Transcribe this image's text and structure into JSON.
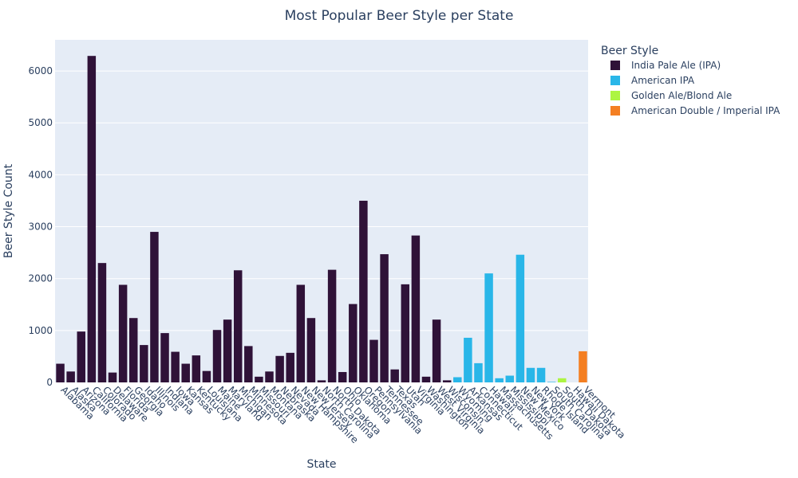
{
  "chart_data": {
    "type": "bar",
    "title": "Most Popular Beer Style per State",
    "xlabel": "State",
    "ylabel": "Beer Style Count",
    "ylim": [
      0,
      6600
    ],
    "yticks": [
      0,
      1000,
      2000,
      3000,
      4000,
      5000,
      6000
    ],
    "grid": true,
    "legend": {
      "title": "Beer Style",
      "position": "right",
      "entries": [
        {
          "name": "India Pale Ale (IPA)",
          "color": "#2f1238"
        },
        {
          "name": "American IPA",
          "color": "#29b6e8"
        },
        {
          "name": "Golden Ale/Blond Ale",
          "color": "#adf542"
        },
        {
          "name": "American Double / Imperial IPA",
          "color": "#f47f22"
        }
      ]
    },
    "categories": [
      "Alabama",
      "Alaska",
      "Arizona",
      "California",
      "Colorado",
      "Delaware",
      "Florida",
      "Georgia",
      "Idaho",
      "Illinois",
      "Indiana",
      "Iowa",
      "Kansas",
      "Kentucky",
      "Louisiana",
      "Maine",
      "Maryland",
      "Michigan",
      "Minnesota",
      "Missouri",
      "Montana",
      "Nebraska",
      "Nevada",
      "New Hampshire",
      "New Jersey",
      "North Carolina",
      "North Dakota",
      "Ohio",
      "Oklahoma",
      "Oregon",
      "Pennsylvania",
      "Tennessee",
      "Texas",
      "Utah",
      "Virginia",
      "Washington",
      "West Virginia",
      "Wisconsin",
      "Wyoming",
      "Arkansas",
      "Connecticut",
      "Hawaii",
      "Massachusetts",
      "Mississippi",
      "New Mexico",
      "New York",
      "Rhode Island",
      "South Carolina",
      "South Dakota",
      "Hawaii Dakota",
      "Vermont"
    ],
    "tick_labels": [
      "Alabama",
      "Alaska",
      "Arizona",
      "California",
      "Colorado",
      "Delaware",
      "Florida",
      "Georgia",
      "Idaho",
      "Illinois",
      "Indiana",
      "Iowa",
      "Kansas",
      "Kentucky",
      "Louisiana",
      "Maine",
      "Maryland",
      "Michigan",
      "Minnesota",
      "Missouri",
      "Montana",
      "Nebraska",
      "Nevada",
      "New Hampshire",
      "New Jersey",
      "North Carolina",
      "North Dakota",
      "Ohio",
      "Oklahoma",
      "Oregon",
      "Pennsylvania",
      "Tennessee",
      "Texas",
      "Utah",
      "Virginia",
      "Washington",
      "West Virginia",
      "Wisconsin",
      "Wyoming",
      "Arkansas",
      "Connecticut",
      "Hawaii",
      "Massachusetts",
      "Mississippi",
      "New Mexico",
      "New York",
      "Rhode Island",
      "South Carolina",
      "South Dakota",
      "Hawaii Dakota",
      "Vermont"
    ],
    "values": [
      360,
      210,
      980,
      6290,
      2300,
      190,
      1880,
      1240,
      720,
      2900,
      950,
      590,
      360,
      520,
      220,
      1010,
      1210,
      2160,
      700,
      110,
      210,
      510,
      570,
      1880,
      1240,
      40,
      2170,
      200,
      1510,
      3500,
      820,
      2470,
      250,
      1890,
      2830,
      110,
      1210,
      40,
      100,
      860,
      370,
      2100,
      80,
      130,
      2460,
      280,
      280,
      10,
      80,
      0,
      600
    ],
    "styles": [
      "India Pale Ale (IPA)",
      "India Pale Ale (IPA)",
      "India Pale Ale (IPA)",
      "India Pale Ale (IPA)",
      "India Pale Ale (IPA)",
      "India Pale Ale (IPA)",
      "India Pale Ale (IPA)",
      "India Pale Ale (IPA)",
      "India Pale Ale (IPA)",
      "India Pale Ale (IPA)",
      "India Pale Ale (IPA)",
      "India Pale Ale (IPA)",
      "India Pale Ale (IPA)",
      "India Pale Ale (IPA)",
      "India Pale Ale (IPA)",
      "India Pale Ale (IPA)",
      "India Pale Ale (IPA)",
      "India Pale Ale (IPA)",
      "India Pale Ale (IPA)",
      "India Pale Ale (IPA)",
      "India Pale Ale (IPA)",
      "India Pale Ale (IPA)",
      "India Pale Ale (IPA)",
      "India Pale Ale (IPA)",
      "India Pale Ale (IPA)",
      "India Pale Ale (IPA)",
      "India Pale Ale (IPA)",
      "India Pale Ale (IPA)",
      "India Pale Ale (IPA)",
      "India Pale Ale (IPA)",
      "India Pale Ale (IPA)",
      "India Pale Ale (IPA)",
      "India Pale Ale (IPA)",
      "India Pale Ale (IPA)",
      "India Pale Ale (IPA)",
      "India Pale Ale (IPA)",
      "India Pale Ale (IPA)",
      "India Pale Ale (IPA)",
      "American IPA",
      "American IPA",
      "American IPA",
      "American IPA",
      "American IPA",
      "American IPA",
      "American IPA",
      "American IPA",
      "American IPA",
      "American IPA",
      "Golden Ale/Blond Ale",
      "Golden Ale/Blond Ale",
      "American Double / Imperial IPA"
    ]
  }
}
